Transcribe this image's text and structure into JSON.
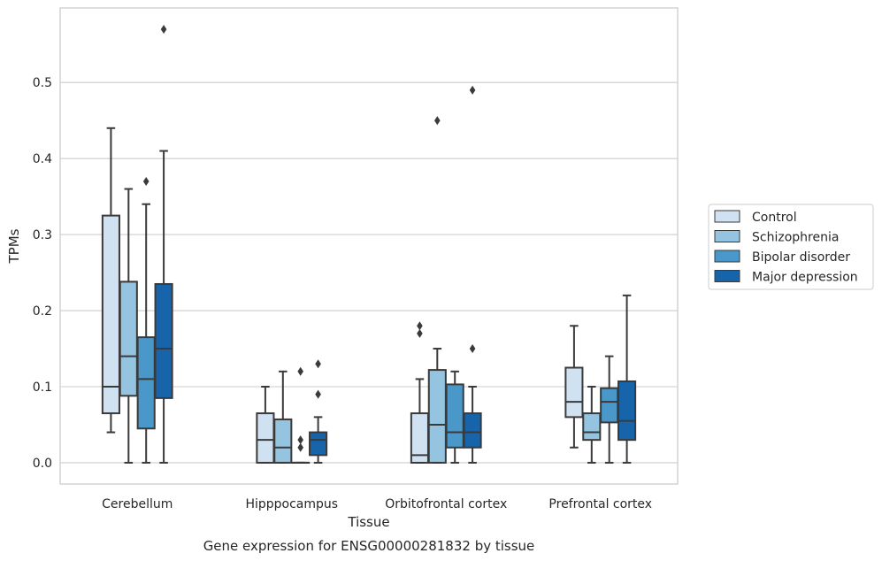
{
  "chart_data": {
    "type": "box",
    "caption": "Gene expression for ENSG00000281832 by tissue",
    "xlabel": "Tissue",
    "ylabel": "TPMs",
    "ylim": [
      -0.028,
      0.598
    ],
    "yticks": [
      0.0,
      0.1,
      0.2,
      0.3,
      0.4,
      0.5
    ],
    "ytick_labels": [
      "0.0",
      "0.1",
      "0.2",
      "0.3",
      "0.4",
      "0.5"
    ],
    "grid": "horizontal",
    "legend_position": "right",
    "categories": [
      "Cerebellum",
      "Hipppocampus",
      "Orbitofrontal cortex",
      "Prefrontal cortex"
    ],
    "series": [
      {
        "name": "Control",
        "color": "#d0e1f2",
        "boxes": [
          {
            "whisker_low": 0.04,
            "q1": 0.065,
            "median": 0.1,
            "q3": 0.325,
            "whisker_high": 0.44,
            "outliers": []
          },
          {
            "whisker_low": 0.0,
            "q1": 0.0,
            "median": 0.03,
            "q3": 0.065,
            "whisker_high": 0.1,
            "outliers": []
          },
          {
            "whisker_low": 0.0,
            "q1": 0.0,
            "median": 0.01,
            "q3": 0.065,
            "whisker_high": 0.11,
            "outliers": [
              0.17,
              0.18
            ]
          },
          {
            "whisker_low": 0.02,
            "q1": 0.06,
            "median": 0.08,
            "q3": 0.125,
            "whisker_high": 0.18,
            "outliers": []
          }
        ]
      },
      {
        "name": "Schizophrenia",
        "color": "#94c4df",
        "boxes": [
          {
            "whisker_low": 0.0,
            "q1": 0.088,
            "median": 0.14,
            "q3": 0.238,
            "whisker_high": 0.36,
            "outliers": []
          },
          {
            "whisker_low": 0.0,
            "q1": 0.0,
            "median": 0.02,
            "q3": 0.057,
            "whisker_high": 0.12,
            "outliers": []
          },
          {
            "whisker_low": 0.0,
            "q1": 0.0,
            "median": 0.05,
            "q3": 0.122,
            "whisker_high": 0.15,
            "outliers": [
              0.45
            ]
          },
          {
            "whisker_low": 0.0,
            "q1": 0.03,
            "median": 0.04,
            "q3": 0.065,
            "whisker_high": 0.1,
            "outliers": []
          }
        ]
      },
      {
        "name": "Bipolar disorder",
        "color": "#4a98c9",
        "boxes": [
          {
            "whisker_low": 0.0,
            "q1": 0.045,
            "median": 0.11,
            "q3": 0.165,
            "whisker_high": 0.34,
            "outliers": [
              0.37
            ]
          },
          {
            "whisker_low": 0.0,
            "q1": 0.0,
            "median": 0.0,
            "q3": 0.0,
            "whisker_high": 0.0,
            "outliers": [
              0.02,
              0.03,
              0.12
            ]
          },
          {
            "whisker_low": 0.0,
            "q1": 0.02,
            "median": 0.04,
            "q3": 0.103,
            "whisker_high": 0.12,
            "outliers": []
          },
          {
            "whisker_low": 0.0,
            "q1": 0.053,
            "median": 0.08,
            "q3": 0.098,
            "whisker_high": 0.14,
            "outliers": []
          }
        ]
      },
      {
        "name": "Major depression",
        "color": "#1764ab",
        "boxes": [
          {
            "whisker_low": 0.0,
            "q1": 0.085,
            "median": 0.15,
            "q3": 0.235,
            "whisker_high": 0.41,
            "outliers": [
              0.57
            ]
          },
          {
            "whisker_low": 0.0,
            "q1": 0.01,
            "median": 0.03,
            "q3": 0.04,
            "whisker_high": 0.06,
            "outliers": [
              0.09,
              0.13
            ]
          },
          {
            "whisker_low": 0.0,
            "q1": 0.02,
            "median": 0.04,
            "q3": 0.065,
            "whisker_high": 0.1,
            "outliers": [
              0.15,
              0.49
            ]
          },
          {
            "whisker_low": 0.0,
            "q1": 0.03,
            "median": 0.055,
            "q3": 0.107,
            "whisker_high": 0.22,
            "outliers": []
          }
        ]
      }
    ]
  }
}
